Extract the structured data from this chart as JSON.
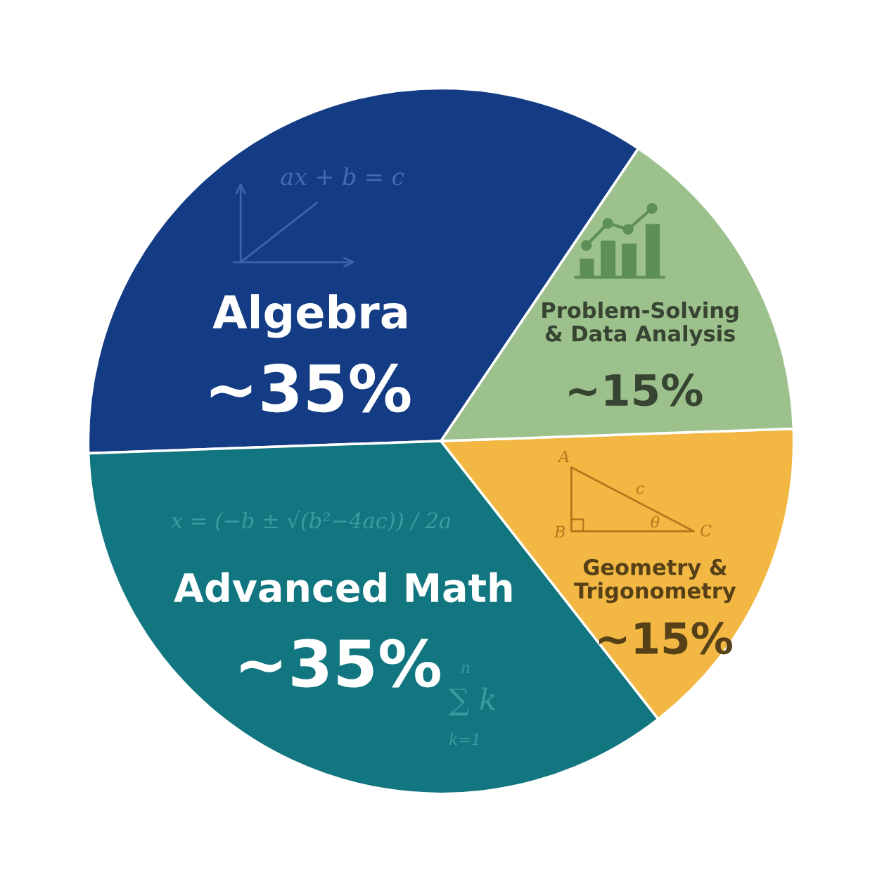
{
  "chart_data": {
    "type": "pie",
    "categories": [
      "Algebra",
      "Advanced Math",
      "Geometry &\nTrigonometry",
      "Problem-Solving\n& Data Analysis"
    ],
    "values": [
      35,
      35,
      15,
      15
    ],
    "value_labels": [
      "~35%",
      "~35%",
      "~15%",
      "~15%"
    ],
    "colors": [
      "#143c84",
      "#127680",
      "#f2b843",
      "#9cc18c"
    ],
    "annotations": [
      "ax + b = c",
      "x = (−b ± √(b²−4ac)) / 2a",
      "n",
      "∑ k",
      "k=1",
      "A",
      "B",
      "C",
      "c",
      "θ"
    ]
  }
}
